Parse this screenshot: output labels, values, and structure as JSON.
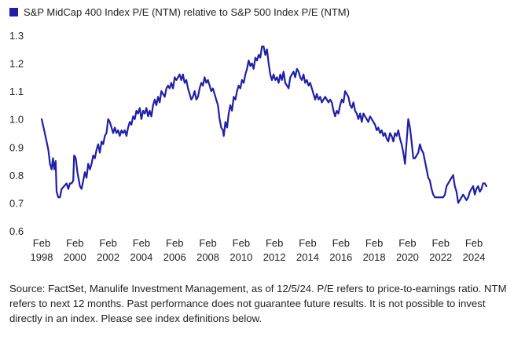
{
  "colors": {
    "series": "#1f1fa8",
    "axis_text": "#222222",
    "gridline": "#e6e6e6"
  },
  "chart_data": {
    "type": "line",
    "legend": "S&P MidCap 400 Index P/E (NTM) relative to S&P 500 Index P/E (NTM)",
    "legend_position": "top-left",
    "grid": false,
    "xlim": [
      1998.1,
      2024.9
    ],
    "ylim": [
      0.6,
      1.3
    ],
    "y_ticks": [
      "0.6",
      "0.7",
      "0.8",
      "0.9",
      "1.0",
      "1.1",
      "1.2",
      "1.3"
    ],
    "x_ticks": [
      {
        "x": 1998.1,
        "top": "Feb",
        "bottom": "1998"
      },
      {
        "x": 2000.1,
        "top": "Feb",
        "bottom": "2000"
      },
      {
        "x": 2002.1,
        "top": "Feb",
        "bottom": "2002"
      },
      {
        "x": 2004.1,
        "top": "Feb",
        "bottom": "2004"
      },
      {
        "x": 2006.1,
        "top": "Feb",
        "bottom": "2006"
      },
      {
        "x": 2008.1,
        "top": "Feb",
        "bottom": "2008"
      },
      {
        "x": 2010.1,
        "top": "Feb",
        "bottom": "2010"
      },
      {
        "x": 2012.1,
        "top": "Feb",
        "bottom": "2012"
      },
      {
        "x": 2014.1,
        "top": "Feb",
        "bottom": "2014"
      },
      {
        "x": 2016.1,
        "top": "Feb",
        "bottom": "2016"
      },
      {
        "x": 2018.1,
        "top": "Feb",
        "bottom": "2018"
      },
      {
        "x": 2020.1,
        "top": "Feb",
        "bottom": "2020"
      },
      {
        "x": 2022.1,
        "top": "Feb",
        "bottom": "2022"
      },
      {
        "x": 2024.1,
        "top": "Feb",
        "bottom": "2024"
      }
    ],
    "series": [
      {
        "values": [
          [
            1998.1,
            1.0
          ],
          [
            1998.25,
            0.96
          ],
          [
            1998.4,
            0.92
          ],
          [
            1998.5,
            0.89
          ],
          [
            1998.6,
            0.84
          ],
          [
            1998.7,
            0.82
          ],
          [
            1998.78,
            0.86
          ],
          [
            1998.86,
            0.82
          ],
          [
            1998.94,
            0.85
          ],
          [
            1999.0,
            0.74
          ],
          [
            1999.1,
            0.72
          ],
          [
            1999.2,
            0.72
          ],
          [
            1999.3,
            0.75
          ],
          [
            1999.45,
            0.76
          ],
          [
            1999.6,
            0.77
          ],
          [
            1999.7,
            0.75
          ],
          [
            1999.8,
            0.77
          ],
          [
            1999.9,
            0.77
          ],
          [
            2000.0,
            0.78
          ],
          [
            2000.05,
            0.87
          ],
          [
            2000.15,
            0.86
          ],
          [
            2000.25,
            0.81
          ],
          [
            2000.4,
            0.76
          ],
          [
            2000.5,
            0.75
          ],
          [
            2000.6,
            0.78
          ],
          [
            2000.7,
            0.81
          ],
          [
            2000.8,
            0.79
          ],
          [
            2000.9,
            0.84
          ],
          [
            2001.0,
            0.82
          ],
          [
            2001.1,
            0.84
          ],
          [
            2001.2,
            0.87
          ],
          [
            2001.3,
            0.86
          ],
          [
            2001.4,
            0.89
          ],
          [
            2001.5,
            0.91
          ],
          [
            2001.6,
            0.88
          ],
          [
            2001.7,
            0.92
          ],
          [
            2001.8,
            0.91
          ],
          [
            2001.9,
            0.94
          ],
          [
            2002.0,
            0.95
          ],
          [
            2002.1,
            1.0
          ],
          [
            2002.2,
            0.99
          ],
          [
            2002.3,
            0.97
          ],
          [
            2002.4,
            0.95
          ],
          [
            2002.5,
            0.97
          ],
          [
            2002.6,
            0.95
          ],
          [
            2002.7,
            0.96
          ],
          [
            2002.8,
            0.94
          ],
          [
            2002.9,
            0.96
          ],
          [
            2003.0,
            0.95
          ],
          [
            2003.1,
            0.96
          ],
          [
            2003.2,
            0.94
          ],
          [
            2003.3,
            0.97
          ],
          [
            2003.4,
            0.99
          ],
          [
            2003.5,
            0.98
          ],
          [
            2003.6,
            1.01
          ],
          [
            2003.7,
            1.0
          ],
          [
            2003.8,
            1.03
          ],
          [
            2003.9,
            1.02
          ],
          [
            2004.0,
            1.04
          ],
          [
            2004.1,
            1.0
          ],
          [
            2004.2,
            1.03
          ],
          [
            2004.3,
            1.02
          ],
          [
            2004.4,
            1.04
          ],
          [
            2004.5,
            1.01
          ],
          [
            2004.6,
            1.03
          ],
          [
            2004.7,
            1.01
          ],
          [
            2004.8,
            1.05
          ],
          [
            2004.9,
            1.07
          ],
          [
            2005.0,
            1.05
          ],
          [
            2005.1,
            1.08
          ],
          [
            2005.2,
            1.06
          ],
          [
            2005.3,
            1.1
          ],
          [
            2005.4,
            1.09
          ],
          [
            2005.5,
            1.08
          ],
          [
            2005.6,
            1.11
          ],
          [
            2005.7,
            1.12
          ],
          [
            2005.8,
            1.11
          ],
          [
            2005.9,
            1.13
          ],
          [
            2006.0,
            1.11
          ],
          [
            2006.1,
            1.15
          ],
          [
            2006.2,
            1.14
          ],
          [
            2006.3,
            1.15
          ],
          [
            2006.4,
            1.16
          ],
          [
            2006.5,
            1.14
          ],
          [
            2006.6,
            1.16
          ],
          [
            2006.7,
            1.13
          ],
          [
            2006.8,
            1.14
          ],
          [
            2006.9,
            1.11
          ],
          [
            2007.0,
            1.09
          ],
          [
            2007.1,
            1.07
          ],
          [
            2007.2,
            1.08
          ],
          [
            2007.3,
            1.1
          ],
          [
            2007.4,
            1.07
          ],
          [
            2007.5,
            1.08
          ],
          [
            2007.6,
            1.11
          ],
          [
            2007.7,
            1.13
          ],
          [
            2007.8,
            1.12
          ],
          [
            2007.9,
            1.15
          ],
          [
            2008.0,
            1.13
          ],
          [
            2008.1,
            1.14
          ],
          [
            2008.2,
            1.12
          ],
          [
            2008.3,
            1.1
          ],
          [
            2008.4,
            1.11
          ],
          [
            2008.5,
            1.09
          ],
          [
            2008.6,
            1.07
          ],
          [
            2008.7,
            1.05
          ],
          [
            2008.8,
            1.0
          ],
          [
            2008.9,
            0.97
          ],
          [
            2009.0,
            0.96
          ],
          [
            2009.05,
            0.94
          ],
          [
            2009.15,
            0.99
          ],
          [
            2009.25,
            0.97
          ],
          [
            2009.35,
            1.02
          ],
          [
            2009.45,
            1.05
          ],
          [
            2009.55,
            1.03
          ],
          [
            2009.65,
            1.08
          ],
          [
            2009.75,
            1.07
          ],
          [
            2009.85,
            1.1
          ],
          [
            2009.95,
            1.12
          ],
          [
            2010.05,
            1.11
          ],
          [
            2010.15,
            1.14
          ],
          [
            2010.25,
            1.13
          ],
          [
            2010.35,
            1.16
          ],
          [
            2010.45,
            1.18
          ],
          [
            2010.55,
            1.21
          ],
          [
            2010.65,
            1.19
          ],
          [
            2010.75,
            1.2
          ],
          [
            2010.85,
            1.18
          ],
          [
            2010.95,
            1.22
          ],
          [
            2011.05,
            1.21
          ],
          [
            2011.15,
            1.23
          ],
          [
            2011.25,
            1.22
          ],
          [
            2011.35,
            1.26
          ],
          [
            2011.45,
            1.26
          ],
          [
            2011.55,
            1.23
          ],
          [
            2011.65,
            1.25
          ],
          [
            2011.75,
            1.2
          ],
          [
            2011.85,
            1.16
          ],
          [
            2011.95,
            1.14
          ],
          [
            2012.05,
            1.16
          ],
          [
            2012.15,
            1.14
          ],
          [
            2012.25,
            1.15
          ],
          [
            2012.35,
            1.13
          ],
          [
            2012.45,
            1.16
          ],
          [
            2012.55,
            1.14
          ],
          [
            2012.65,
            1.17
          ],
          [
            2012.75,
            1.13
          ],
          [
            2012.85,
            1.12
          ],
          [
            2012.95,
            1.11
          ],
          [
            2013.05,
            1.15
          ],
          [
            2013.15,
            1.16
          ],
          [
            2013.25,
            1.17
          ],
          [
            2013.35,
            1.15
          ],
          [
            2013.45,
            1.18
          ],
          [
            2013.55,
            1.17
          ],
          [
            2013.65,
            1.15
          ],
          [
            2013.75,
            1.14
          ],
          [
            2013.85,
            1.16
          ],
          [
            2013.95,
            1.13
          ],
          [
            2014.05,
            1.14
          ],
          [
            2014.15,
            1.12
          ],
          [
            2014.25,
            1.13
          ],
          [
            2014.35,
            1.11
          ],
          [
            2014.45,
            1.09
          ],
          [
            2014.55,
            1.07
          ],
          [
            2014.65,
            1.09
          ],
          [
            2014.75,
            1.07
          ],
          [
            2014.85,
            1.08
          ],
          [
            2014.95,
            1.06
          ],
          [
            2015.05,
            1.07
          ],
          [
            2015.15,
            1.08
          ],
          [
            2015.25,
            1.07
          ],
          [
            2015.35,
            1.06
          ],
          [
            2015.45,
            1.07
          ],
          [
            2015.55,
            1.06
          ],
          [
            2015.65,
            1.03
          ],
          [
            2015.75,
            1.01
          ],
          [
            2015.85,
            1.03
          ],
          [
            2015.95,
            1.02
          ],
          [
            2016.05,
            1.05
          ],
          [
            2016.15,
            1.07
          ],
          [
            2016.25,
            1.06
          ],
          [
            2016.35,
            1.1
          ],
          [
            2016.45,
            1.09
          ],
          [
            2016.55,
            1.08
          ],
          [
            2016.65,
            1.05
          ],
          [
            2016.75,
            1.04
          ],
          [
            2016.85,
            1.06
          ],
          [
            2016.95,
            1.03
          ],
          [
            2017.05,
            1.02
          ],
          [
            2017.15,
            1.0
          ],
          [
            2017.25,
            1.02
          ],
          [
            2017.35,
            0.99
          ],
          [
            2017.45,
            1.02
          ],
          [
            2017.55,
            1.01
          ],
          [
            2017.65,
            1.0
          ],
          [
            2017.75,
            0.99
          ],
          [
            2017.85,
            1.01
          ],
          [
            2017.95,
            1.0
          ],
          [
            2018.05,
            0.99
          ],
          [
            2018.15,
            0.98
          ],
          [
            2018.25,
            0.96
          ],
          [
            2018.35,
            0.97
          ],
          [
            2018.45,
            0.95
          ],
          [
            2018.55,
            0.96
          ],
          [
            2018.65,
            0.94
          ],
          [
            2018.75,
            0.95
          ],
          [
            2018.85,
            0.93
          ],
          [
            2018.95,
            0.92
          ],
          [
            2019.05,
            0.95
          ],
          [
            2019.15,
            0.94
          ],
          [
            2019.25,
            0.92
          ],
          [
            2019.35,
            0.95
          ],
          [
            2019.45,
            0.94
          ],
          [
            2019.55,
            0.96
          ],
          [
            2019.65,
            0.93
          ],
          [
            2019.75,
            0.91
          ],
          [
            2019.85,
            0.88
          ],
          [
            2019.95,
            0.84
          ],
          [
            2020.05,
            0.92
          ],
          [
            2020.15,
            1.0
          ],
          [
            2020.25,
            0.97
          ],
          [
            2020.35,
            0.92
          ],
          [
            2020.45,
            0.86
          ],
          [
            2020.55,
            0.86
          ],
          [
            2020.65,
            0.87
          ],
          [
            2020.75,
            0.88
          ],
          [
            2020.85,
            0.91
          ],
          [
            2020.95,
            0.89
          ],
          [
            2021.05,
            0.88
          ],
          [
            2021.15,
            0.85
          ],
          [
            2021.25,
            0.82
          ],
          [
            2021.35,
            0.79
          ],
          [
            2021.45,
            0.78
          ],
          [
            2021.55,
            0.75
          ],
          [
            2021.65,
            0.73
          ],
          [
            2021.75,
            0.72
          ],
          [
            2021.85,
            0.72
          ],
          [
            2021.95,
            0.72
          ],
          [
            2022.05,
            0.72
          ],
          [
            2022.15,
            0.72
          ],
          [
            2022.25,
            0.72
          ],
          [
            2022.35,
            0.73
          ],
          [
            2022.45,
            0.76
          ],
          [
            2022.55,
            0.77
          ],
          [
            2022.65,
            0.78
          ],
          [
            2022.75,
            0.79
          ],
          [
            2022.85,
            0.8
          ],
          [
            2022.95,
            0.76
          ],
          [
            2023.05,
            0.74
          ],
          [
            2023.15,
            0.7
          ],
          [
            2023.25,
            0.71
          ],
          [
            2023.35,
            0.72
          ],
          [
            2023.45,
            0.73
          ],
          [
            2023.55,
            0.72
          ],
          [
            2023.65,
            0.71
          ],
          [
            2023.75,
            0.72
          ],
          [
            2023.85,
            0.74
          ],
          [
            2023.95,
            0.75
          ],
          [
            2024.05,
            0.76
          ],
          [
            2024.15,
            0.73
          ],
          [
            2024.25,
            0.75
          ],
          [
            2024.35,
            0.76
          ],
          [
            2024.45,
            0.74
          ],
          [
            2024.55,
            0.75
          ],
          [
            2024.65,
            0.77
          ],
          [
            2024.75,
            0.77
          ],
          [
            2024.85,
            0.76
          ]
        ]
      }
    ]
  },
  "source_note": "Source: FactSet, Manulife Investment Management, as of 12/5/24. P/E refers to price-to-earnings ratio. NTM refers to next 12 months. Past performance does not guarantee future results. It is not possible to invest directly in an index. Please see index definitions below."
}
